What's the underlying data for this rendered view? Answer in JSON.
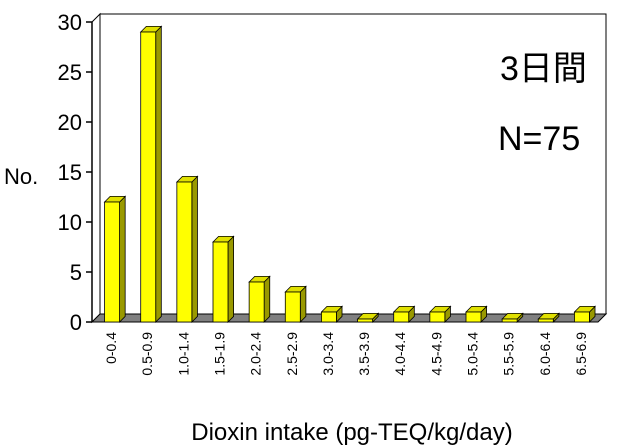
{
  "chart_data": {
    "type": "bar",
    "categories": [
      "0-0.4",
      "0.5-0.9",
      "1.0-1.4",
      "1.5-1.9",
      "2.0-2.4",
      "2.5-2.9",
      "3.0-3.4",
      "3.5-3.9",
      "4.0-4.4",
      "4.5-4.9",
      "5.0-5.4",
      "5.5-5.9",
      "6.0-6.4",
      "6.5-6.9"
    ],
    "values": [
      12,
      29,
      14,
      8,
      4,
      3,
      1,
      0,
      1,
      1,
      1,
      0,
      0,
      1
    ],
    "title": "",
    "xlabel": "Dioxin intake (pg-TEQ/kg/day)",
    "ylabel": "No.",
    "ylim": [
      0,
      30
    ],
    "yticks": [
      0,
      5,
      10,
      15,
      20,
      25,
      30
    ],
    "grid": false,
    "annotations": [
      "3日間",
      "N=75"
    ],
    "colors": {
      "bar_front": "#ffff00",
      "bar_side": "#999900",
      "bar_top": "#e0e000",
      "floor": "#808080",
      "wall": "#ffffff",
      "axis": "#000000"
    }
  }
}
